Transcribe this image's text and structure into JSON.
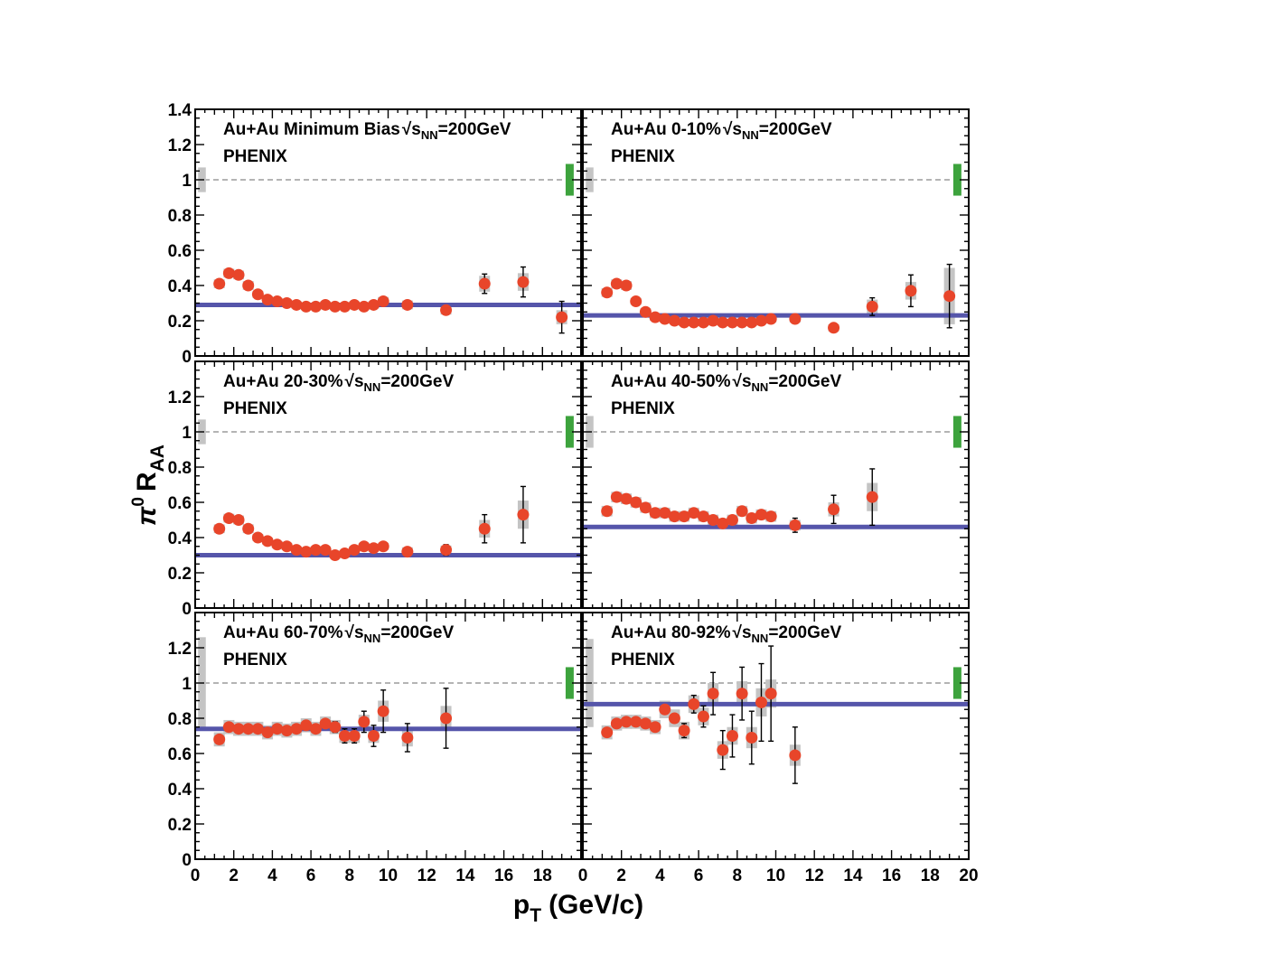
{
  "chart_data": {
    "type": "scatter",
    "x_axis": {
      "label": "p",
      "label_sub": "T",
      "label_units": "(GeV/c)",
      "range": [
        0,
        20
      ],
      "ticks": [
        0,
        2,
        4,
        6,
        8,
        10,
        12,
        14,
        16,
        18,
        20
      ],
      "left_tick_labels": [
        "0",
        "2",
        "4",
        "6",
        "8",
        "10",
        "12",
        "14",
        "16",
        "18"
      ],
      "right_tick_labels": [
        "0",
        "2",
        "4",
        "6",
        "8",
        "10",
        "12",
        "14",
        "16",
        "18",
        "20"
      ]
    },
    "y_axis": {
      "label_pi": "π",
      "label_sup": "0",
      "label_R": "R",
      "label_sub": "AA",
      "range": [
        0,
        1.4
      ],
      "top_tick_labels": [
        "0",
        "0.2",
        "0.4",
        "0.6",
        "0.8",
        "1",
        "1.2",
        "1.4"
      ],
      "lower_tick_labels": [
        "0",
        "0.2",
        "0.4",
        "0.6",
        "0.8",
        "1",
        "1.2"
      ]
    },
    "experiment_label": "PHENIX",
    "sqrt_label": "s",
    "nn_label": "NN",
    "energy_label": "=200GeV",
    "reference_line": 1,
    "panels": [
      {
        "title_prefix": "Au+Au Minimum Bias",
        "fit_level": 0.29,
        "global_sys": [
          0.93,
          1.07
        ],
        "norm_sys": [
          0.91,
          1.09
        ],
        "points": [
          {
            "x": 1.25,
            "y": 0.41,
            "sys": 0.025,
            "err": 0.0
          },
          {
            "x": 1.75,
            "y": 0.47,
            "sys": 0.025,
            "err": 0.0
          },
          {
            "x": 2.25,
            "y": 0.46,
            "sys": 0.025,
            "err": 0.0
          },
          {
            "x": 2.75,
            "y": 0.4,
            "sys": 0.025,
            "err": 0.0
          },
          {
            "x": 3.25,
            "y": 0.35,
            "sys": 0.02,
            "err": 0.0
          },
          {
            "x": 3.75,
            "y": 0.32,
            "sys": 0.02,
            "err": 0.0
          },
          {
            "x": 4.25,
            "y": 0.31,
            "sys": 0.02,
            "err": 0.0
          },
          {
            "x": 4.75,
            "y": 0.3,
            "sys": 0.02,
            "err": 0.0
          },
          {
            "x": 5.25,
            "y": 0.29,
            "sys": 0.02,
            "err": 0.0
          },
          {
            "x": 5.75,
            "y": 0.28,
            "sys": 0.02,
            "err": 0.0
          },
          {
            "x": 6.25,
            "y": 0.28,
            "sys": 0.02,
            "err": 0.0
          },
          {
            "x": 6.75,
            "y": 0.29,
            "sys": 0.02,
            "err": 0.0
          },
          {
            "x": 7.25,
            "y": 0.28,
            "sys": 0.02,
            "err": 0.0
          },
          {
            "x": 7.75,
            "y": 0.28,
            "sys": 0.02,
            "err": 0.0
          },
          {
            "x": 8.25,
            "y": 0.29,
            "sys": 0.02,
            "err": 0.01
          },
          {
            "x": 8.75,
            "y": 0.28,
            "sys": 0.02,
            "err": 0.01
          },
          {
            "x": 9.25,
            "y": 0.29,
            "sys": 0.02,
            "err": 0.01
          },
          {
            "x": 9.75,
            "y": 0.31,
            "sys": 0.025,
            "err": 0.015
          },
          {
            "x": 11.0,
            "y": 0.29,
            "sys": 0.025,
            "err": 0.02
          },
          {
            "x": 13.0,
            "y": 0.26,
            "sys": 0.025,
            "err": 0.025
          },
          {
            "x": 15.0,
            "y": 0.41,
            "sys": 0.045,
            "err": 0.055
          },
          {
            "x": 17.0,
            "y": 0.42,
            "sys": 0.05,
            "err": 0.085
          },
          {
            "x": 19.0,
            "y": 0.22,
            "sys": 0.04,
            "err": 0.09
          }
        ]
      },
      {
        "title_prefix": "Au+Au 0-10%",
        "fit_level": 0.23,
        "global_sys": [
          0.93,
          1.07
        ],
        "norm_sys": [
          0.91,
          1.09
        ],
        "points": [
          {
            "x": 1.25,
            "y": 0.36,
            "sys": 0.025,
            "err": 0.0
          },
          {
            "x": 1.75,
            "y": 0.41,
            "sys": 0.025,
            "err": 0.0
          },
          {
            "x": 2.25,
            "y": 0.4,
            "sys": 0.025,
            "err": 0.0
          },
          {
            "x": 2.75,
            "y": 0.31,
            "sys": 0.02,
            "err": 0.0
          },
          {
            "x": 3.25,
            "y": 0.25,
            "sys": 0.02,
            "err": 0.0
          },
          {
            "x": 3.75,
            "y": 0.22,
            "sys": 0.02,
            "err": 0.0
          },
          {
            "x": 4.25,
            "y": 0.21,
            "sys": 0.02,
            "err": 0.0
          },
          {
            "x": 4.75,
            "y": 0.2,
            "sys": 0.02,
            "err": 0.0
          },
          {
            "x": 5.25,
            "y": 0.19,
            "sys": 0.02,
            "err": 0.0
          },
          {
            "x": 5.75,
            "y": 0.19,
            "sys": 0.02,
            "err": 0.0
          },
          {
            "x": 6.25,
            "y": 0.19,
            "sys": 0.02,
            "err": 0.0
          },
          {
            "x": 6.75,
            "y": 0.2,
            "sys": 0.02,
            "err": 0.0
          },
          {
            "x": 7.25,
            "y": 0.19,
            "sys": 0.02,
            "err": 0.0
          },
          {
            "x": 7.75,
            "y": 0.19,
            "sys": 0.02,
            "err": 0.0
          },
          {
            "x": 8.25,
            "y": 0.19,
            "sys": 0.02,
            "err": 0.005
          },
          {
            "x": 8.75,
            "y": 0.19,
            "sys": 0.02,
            "err": 0.005
          },
          {
            "x": 9.25,
            "y": 0.2,
            "sys": 0.02,
            "err": 0.01
          },
          {
            "x": 9.75,
            "y": 0.21,
            "sys": 0.02,
            "err": 0.01
          },
          {
            "x": 11.0,
            "y": 0.21,
            "sys": 0.02,
            "err": 0.015
          },
          {
            "x": 13.0,
            "y": 0.16,
            "sys": 0.02,
            "err": 0.02
          },
          {
            "x": 15.0,
            "y": 0.28,
            "sys": 0.04,
            "err": 0.05
          },
          {
            "x": 17.0,
            "y": 0.37,
            "sys": 0.05,
            "err": 0.09
          },
          {
            "x": 19.0,
            "y": 0.34,
            "sys": 0.16,
            "err": 0.18
          }
        ]
      },
      {
        "title_prefix": "Au+Au 20-30%",
        "fit_level": 0.3,
        "global_sys": [
          0.93,
          1.07
        ],
        "norm_sys": [
          0.91,
          1.09
        ],
        "points": [
          {
            "x": 1.25,
            "y": 0.45,
            "sys": 0.025,
            "err": 0.0
          },
          {
            "x": 1.75,
            "y": 0.51,
            "sys": 0.025,
            "err": 0.0
          },
          {
            "x": 2.25,
            "y": 0.5,
            "sys": 0.025,
            "err": 0.0
          },
          {
            "x": 2.75,
            "y": 0.45,
            "sys": 0.025,
            "err": 0.0
          },
          {
            "x": 3.25,
            "y": 0.4,
            "sys": 0.02,
            "err": 0.0
          },
          {
            "x": 3.75,
            "y": 0.38,
            "sys": 0.02,
            "err": 0.0
          },
          {
            "x": 4.25,
            "y": 0.36,
            "sys": 0.02,
            "err": 0.0
          },
          {
            "x": 4.75,
            "y": 0.35,
            "sys": 0.02,
            "err": 0.0
          },
          {
            "x": 5.25,
            "y": 0.33,
            "sys": 0.02,
            "err": 0.0
          },
          {
            "x": 5.75,
            "y": 0.32,
            "sys": 0.02,
            "err": 0.0
          },
          {
            "x": 6.25,
            "y": 0.33,
            "sys": 0.02,
            "err": 0.0
          },
          {
            "x": 6.75,
            "y": 0.33,
            "sys": 0.02,
            "err": 0.0
          },
          {
            "x": 7.25,
            "y": 0.3,
            "sys": 0.02,
            "err": 0.01
          },
          {
            "x": 7.75,
            "y": 0.31,
            "sys": 0.02,
            "err": 0.01
          },
          {
            "x": 8.25,
            "y": 0.33,
            "sys": 0.02,
            "err": 0.01
          },
          {
            "x": 8.75,
            "y": 0.35,
            "sys": 0.02,
            "err": 0.01
          },
          {
            "x": 9.25,
            "y": 0.34,
            "sys": 0.02,
            "err": 0.01
          },
          {
            "x": 9.75,
            "y": 0.35,
            "sys": 0.02,
            "err": 0.015
          },
          {
            "x": 11.0,
            "y": 0.32,
            "sys": 0.025,
            "err": 0.02
          },
          {
            "x": 13.0,
            "y": 0.33,
            "sys": 0.025,
            "err": 0.03
          },
          {
            "x": 15.0,
            "y": 0.45,
            "sys": 0.05,
            "err": 0.08
          },
          {
            "x": 17.0,
            "y": 0.53,
            "sys": 0.08,
            "err": 0.16
          }
        ]
      },
      {
        "title_prefix": "Au+Au 40-50%",
        "fit_level": 0.46,
        "global_sys": [
          0.91,
          1.09
        ],
        "norm_sys": [
          0.91,
          1.09
        ],
        "points": [
          {
            "x": 1.25,
            "y": 0.55,
            "sys": 0.03,
            "err": 0.0
          },
          {
            "x": 1.75,
            "y": 0.63,
            "sys": 0.03,
            "err": 0.0
          },
          {
            "x": 2.25,
            "y": 0.62,
            "sys": 0.03,
            "err": 0.0
          },
          {
            "x": 2.75,
            "y": 0.6,
            "sys": 0.03,
            "err": 0.0
          },
          {
            "x": 3.25,
            "y": 0.57,
            "sys": 0.03,
            "err": 0.0
          },
          {
            "x": 3.75,
            "y": 0.54,
            "sys": 0.03,
            "err": 0.0
          },
          {
            "x": 4.25,
            "y": 0.54,
            "sys": 0.03,
            "err": 0.0
          },
          {
            "x": 4.75,
            "y": 0.52,
            "sys": 0.03,
            "err": 0.0
          },
          {
            "x": 5.25,
            "y": 0.52,
            "sys": 0.03,
            "err": 0.0
          },
          {
            "x": 5.75,
            "y": 0.54,
            "sys": 0.03,
            "err": 0.0
          },
          {
            "x": 6.25,
            "y": 0.52,
            "sys": 0.03,
            "err": 0.0
          },
          {
            "x": 6.75,
            "y": 0.5,
            "sys": 0.03,
            "err": 0.01
          },
          {
            "x": 7.25,
            "y": 0.48,
            "sys": 0.03,
            "err": 0.02
          },
          {
            "x": 7.75,
            "y": 0.5,
            "sys": 0.03,
            "err": 0.02
          },
          {
            "x": 8.25,
            "y": 0.55,
            "sys": 0.03,
            "err": 0.02
          },
          {
            "x": 8.75,
            "y": 0.51,
            "sys": 0.03,
            "err": 0.02
          },
          {
            "x": 9.25,
            "y": 0.53,
            "sys": 0.03,
            "err": 0.025
          },
          {
            "x": 9.75,
            "y": 0.52,
            "sys": 0.03,
            "err": 0.025
          },
          {
            "x": 11.0,
            "y": 0.47,
            "sys": 0.03,
            "err": 0.04
          },
          {
            "x": 13.0,
            "y": 0.56,
            "sys": 0.04,
            "err": 0.08
          },
          {
            "x": 15.0,
            "y": 0.63,
            "sys": 0.08,
            "err": 0.16
          }
        ]
      },
      {
        "title_prefix": "Au+Au 60-70%",
        "fit_level": 0.74,
        "global_sys": [
          0.74,
          1.26
        ],
        "norm_sys": [
          0.91,
          1.09
        ],
        "points": [
          {
            "x": 1.25,
            "y": 0.68,
            "sys": 0.04,
            "err": 0.0
          },
          {
            "x": 1.75,
            "y": 0.75,
            "sys": 0.04,
            "err": 0.0
          },
          {
            "x": 2.25,
            "y": 0.74,
            "sys": 0.04,
            "err": 0.0
          },
          {
            "x": 2.75,
            "y": 0.74,
            "sys": 0.04,
            "err": 0.0
          },
          {
            "x": 3.25,
            "y": 0.74,
            "sys": 0.04,
            "err": 0.0
          },
          {
            "x": 3.75,
            "y": 0.72,
            "sys": 0.04,
            "err": 0.0
          },
          {
            "x": 4.25,
            "y": 0.74,
            "sys": 0.04,
            "err": 0.0
          },
          {
            "x": 4.75,
            "y": 0.73,
            "sys": 0.04,
            "err": 0.0
          },
          {
            "x": 5.25,
            "y": 0.74,
            "sys": 0.04,
            "err": 0.0
          },
          {
            "x": 5.75,
            "y": 0.76,
            "sys": 0.04,
            "err": 0.01
          },
          {
            "x": 6.25,
            "y": 0.74,
            "sys": 0.04,
            "err": 0.02
          },
          {
            "x": 6.75,
            "y": 0.77,
            "sys": 0.04,
            "err": 0.02
          },
          {
            "x": 7.25,
            "y": 0.75,
            "sys": 0.04,
            "err": 0.03
          },
          {
            "x": 7.75,
            "y": 0.7,
            "sys": 0.04,
            "err": 0.04
          },
          {
            "x": 8.25,
            "y": 0.7,
            "sys": 0.04,
            "err": 0.04
          },
          {
            "x": 8.75,
            "y": 0.78,
            "sys": 0.04,
            "err": 0.06
          },
          {
            "x": 9.25,
            "y": 0.7,
            "sys": 0.04,
            "err": 0.06
          },
          {
            "x": 9.75,
            "y": 0.84,
            "sys": 0.06,
            "err": 0.12
          },
          {
            "x": 11.0,
            "y": 0.69,
            "sys": 0.05,
            "err": 0.08
          },
          {
            "x": 13.0,
            "y": 0.8,
            "sys": 0.07,
            "err": 0.17
          }
        ]
      },
      {
        "title_prefix": "Au+Au 80-92%",
        "fit_level": 0.88,
        "global_sys": [
          0.75,
          1.25
        ],
        "norm_sys": [
          0.91,
          1.09
        ],
        "points": [
          {
            "x": 1.25,
            "y": 0.72,
            "sys": 0.04,
            "err": 0.0
          },
          {
            "x": 1.75,
            "y": 0.77,
            "sys": 0.04,
            "err": 0.0
          },
          {
            "x": 2.25,
            "y": 0.78,
            "sys": 0.04,
            "err": 0.0
          },
          {
            "x": 2.75,
            "y": 0.78,
            "sys": 0.04,
            "err": 0.0
          },
          {
            "x": 3.25,
            "y": 0.77,
            "sys": 0.04,
            "err": 0.0
          },
          {
            "x": 3.75,
            "y": 0.75,
            "sys": 0.04,
            "err": 0.0
          },
          {
            "x": 4.25,
            "y": 0.85,
            "sys": 0.05,
            "err": 0.01
          },
          {
            "x": 4.75,
            "y": 0.8,
            "sys": 0.05,
            "err": 0.02
          },
          {
            "x": 5.25,
            "y": 0.73,
            "sys": 0.05,
            "err": 0.04
          },
          {
            "x": 5.75,
            "y": 0.88,
            "sys": 0.05,
            "err": 0.05
          },
          {
            "x": 6.25,
            "y": 0.81,
            "sys": 0.05,
            "err": 0.06
          },
          {
            "x": 6.75,
            "y": 0.94,
            "sys": 0.06,
            "err": 0.12
          },
          {
            "x": 7.25,
            "y": 0.62,
            "sys": 0.05,
            "err": 0.11
          },
          {
            "x": 7.75,
            "y": 0.7,
            "sys": 0.05,
            "err": 0.12
          },
          {
            "x": 8.25,
            "y": 0.94,
            "sys": 0.07,
            "err": 0.15
          },
          {
            "x": 8.75,
            "y": 0.69,
            "sys": 0.06,
            "err": 0.15
          },
          {
            "x": 9.25,
            "y": 0.89,
            "sys": 0.08,
            "err": 0.22
          },
          {
            "x": 9.75,
            "y": 0.94,
            "sys": 0.08,
            "err": 0.27
          },
          {
            "x": 11.0,
            "y": 0.59,
            "sys": 0.06,
            "err": 0.16
          }
        ]
      }
    ]
  }
}
